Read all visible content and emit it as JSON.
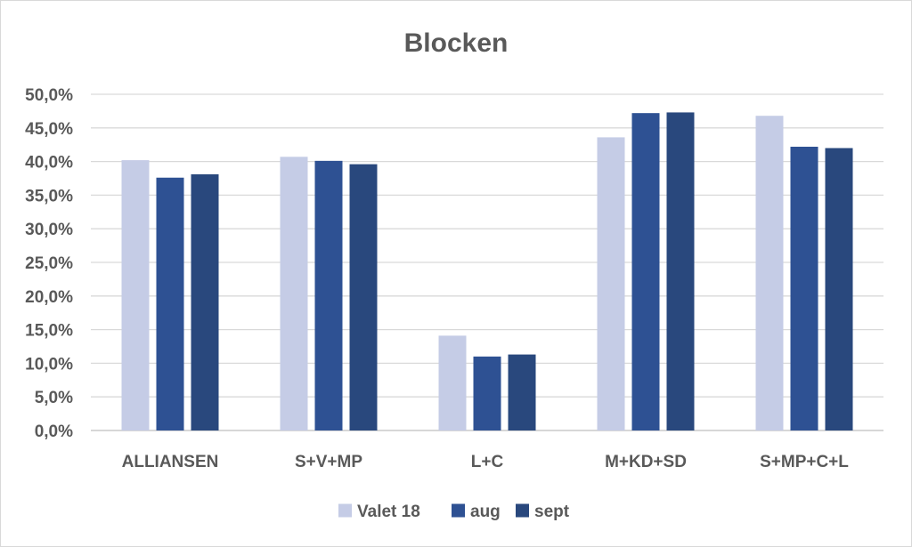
{
  "chart_data": {
    "type": "bar",
    "title": "Blocken",
    "xlabel": "",
    "ylabel": "",
    "categories": [
      "ALLIANSEN",
      "S+V+MP",
      "L+C",
      "M+KD+SD",
      "S+MP+C+L"
    ],
    "series": [
      {
        "name": "Valet 18",
        "color": "#c5cce6",
        "values": [
          40.2,
          40.7,
          14.1,
          43.6,
          46.8
        ]
      },
      {
        "name": "aug",
        "color": "#2e5193",
        "values": [
          37.6,
          40.1,
          11.0,
          47.2,
          42.2
        ]
      },
      {
        "name": "sept",
        "color": "#29487d",
        "values": [
          38.1,
          39.6,
          11.3,
          47.3,
          42.0
        ]
      }
    ],
    "ylim": [
      0,
      50
    ],
    "yticks": [
      "0,0%",
      "5,0%",
      "10,0%",
      "15,0%",
      "20,0%",
      "25,0%",
      "30,0%",
      "35,0%",
      "40,0%",
      "45,0%",
      "50,0%"
    ],
    "grid": true,
    "legend_position": "bottom"
  }
}
